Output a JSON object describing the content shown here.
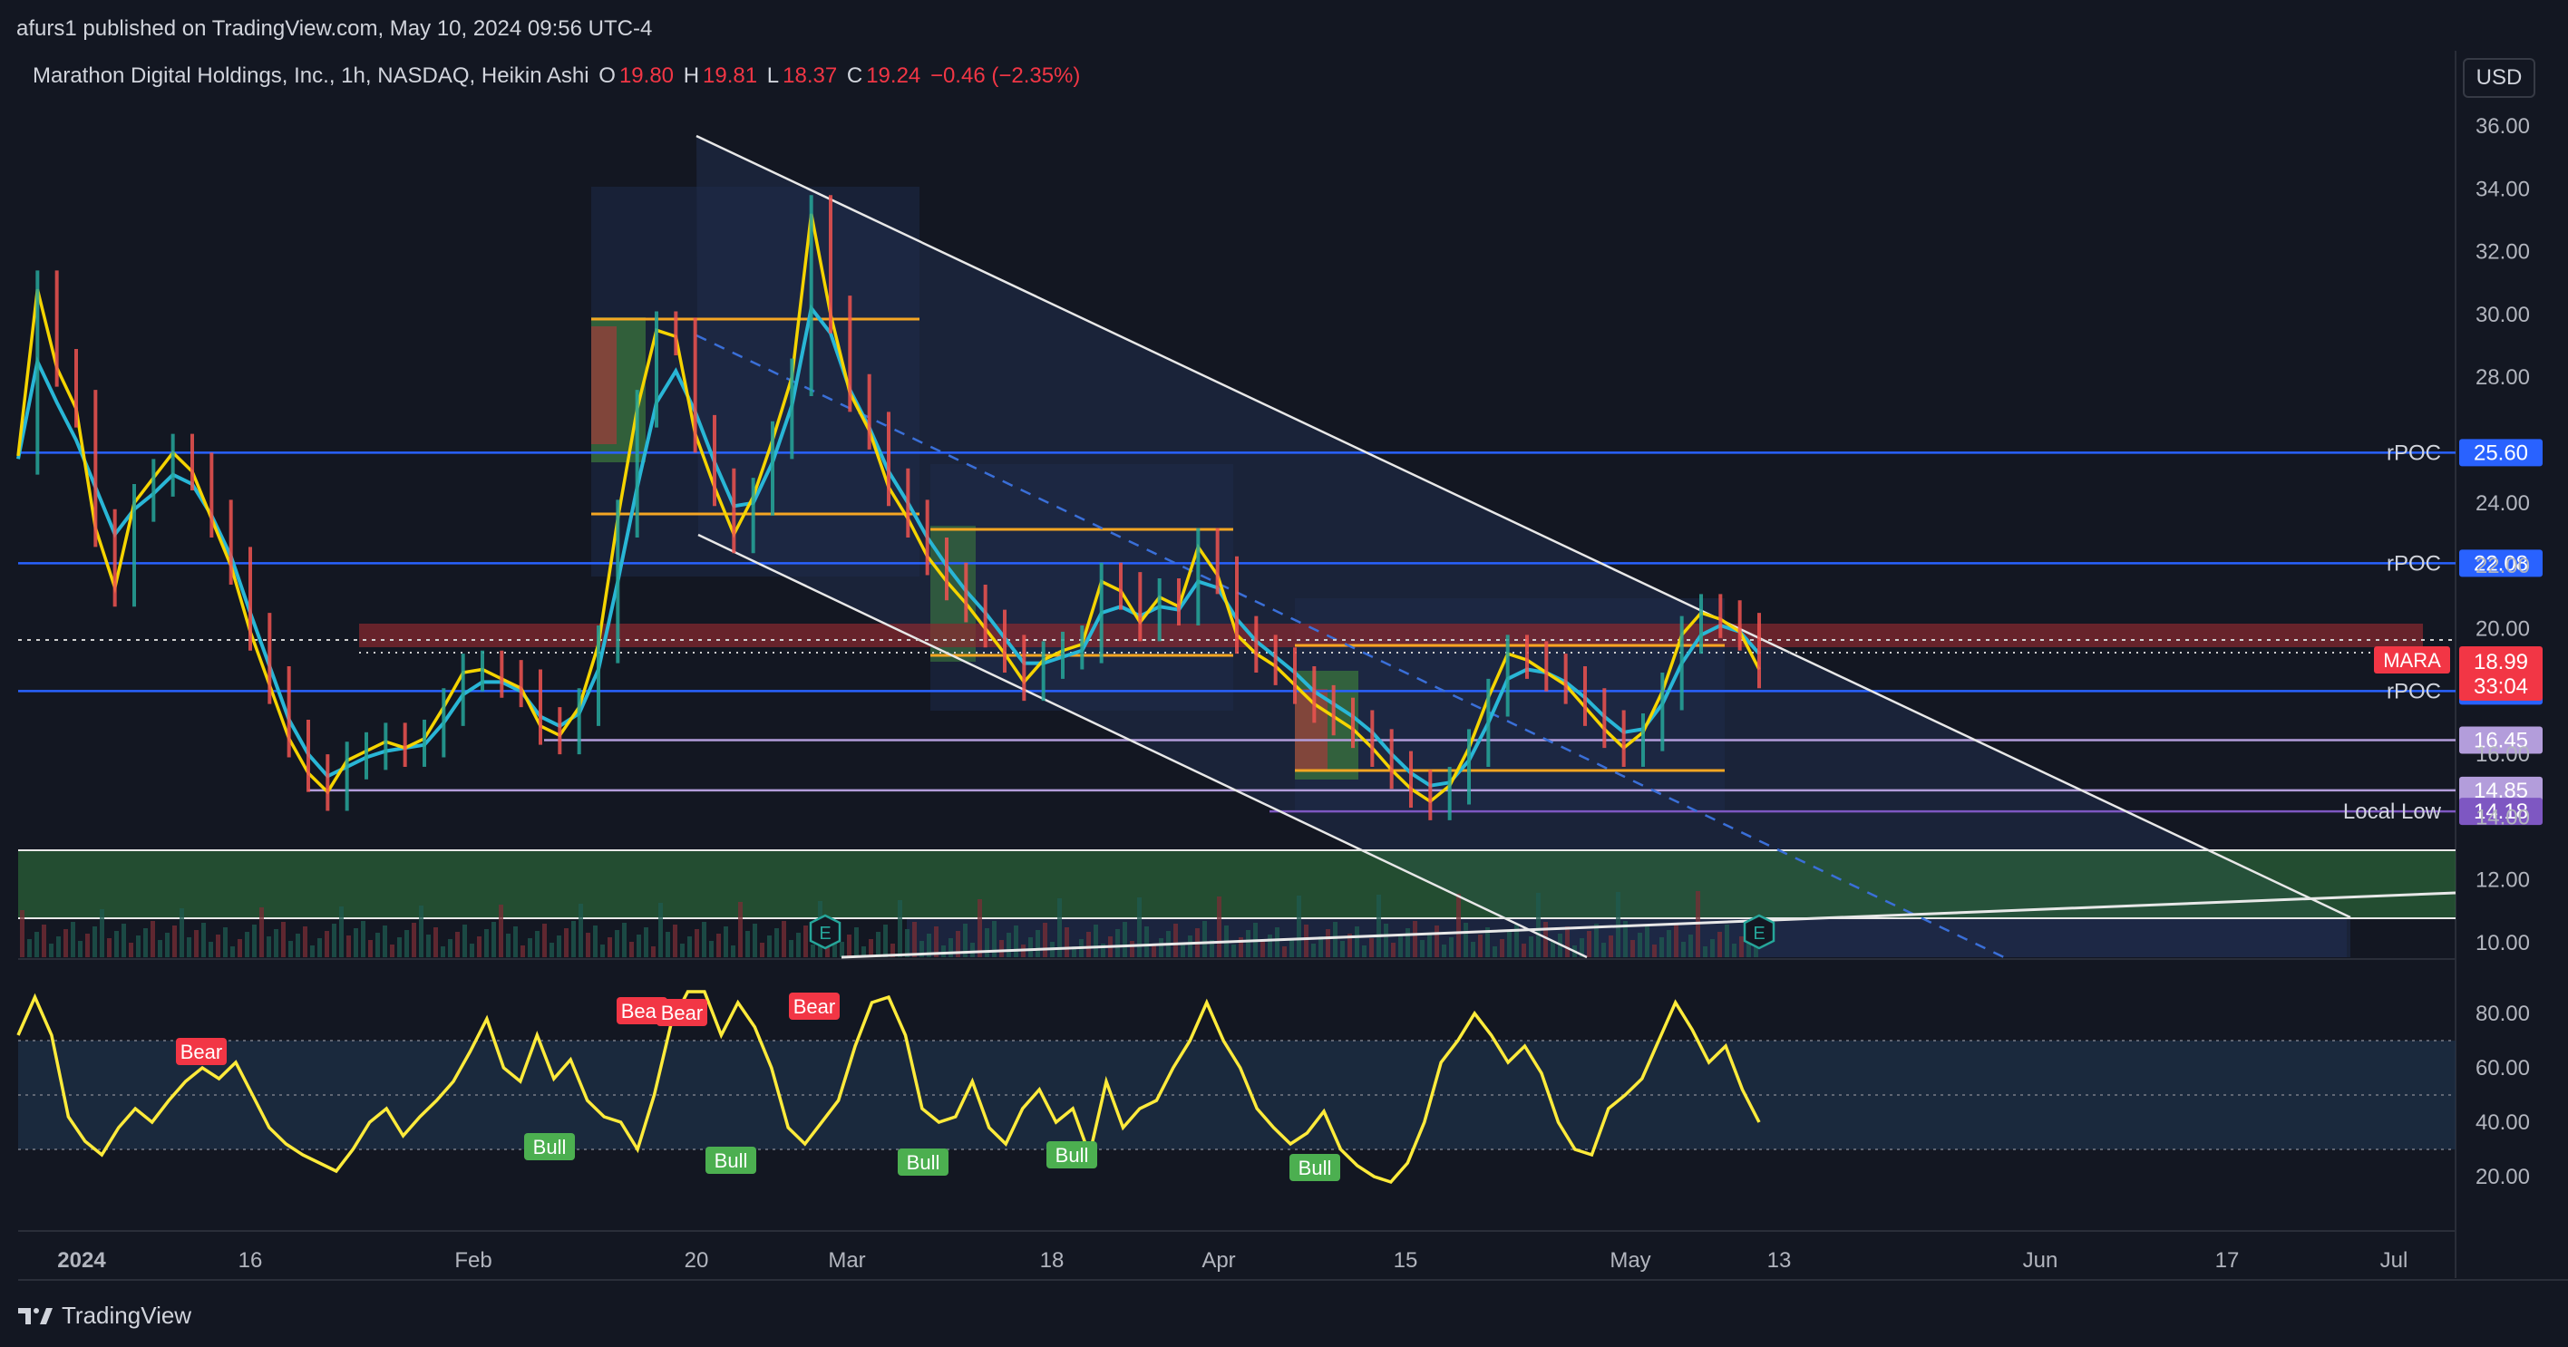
{
  "header": {
    "published": "afurs1 published on TradingView.com, May 10, 2024 09:56 UTC-4"
  },
  "legend": {
    "symbol": "Marathon Digital Holdings, Inc., 1h, NASDAQ, Heikin Ashi",
    "o_label": "O",
    "o_value": "19.80",
    "h_label": "H",
    "h_value": "19.81",
    "l_label": "L",
    "l_value": "18.37",
    "c_label": "C",
    "c_value": "19.24",
    "change": "−0.46 (−2.35%)"
  },
  "currency": "USD",
  "footer": {
    "brand": "TradingView"
  },
  "colors": {
    "background": "#131722",
    "up": "#26a69a",
    "down": "#ef5350",
    "ma_fast": "#f5d400",
    "ma_slow": "#29b6d6",
    "rsi": "#ffeb3b",
    "rpoc": "#2962ff",
    "purple": "#b39ddb",
    "orange": "#f5a623"
  },
  "chart_data": [
    {
      "type": "line",
      "title": "Marathon Digital Holdings, Inc., 1h, NASDAQ, Heikin Ashi",
      "y_ticks": [
        "36.00",
        "34.00",
        "32.00",
        "30.00",
        "28.00",
        "26.00",
        "24.00",
        "22.00",
        "20.00",
        "18.00",
        "16.00",
        "14.00",
        "12.00",
        "10.00"
      ],
      "x_ticks": [
        "2024",
        "16",
        "Feb",
        "20",
        "Mar",
        "18",
        "Apr",
        "15",
        "May",
        "13",
        "Jun",
        "17",
        "Jul"
      ],
      "ylim": [
        10,
        36.5
      ],
      "series": [
        {
          "values": [
            25.5,
            30.8,
            28.3,
            27,
            23.2,
            21.3,
            24,
            24.8,
            25.6,
            25,
            23.5,
            22,
            19.9,
            18.2,
            16.5,
            15.4,
            14.8,
            15.8,
            16.1,
            16.4,
            16.2,
            16.5,
            17.5,
            18.6,
            18.7,
            18.4,
            18.1,
            16.9,
            16.6,
            17.5,
            19.5,
            23.5,
            27,
            29.5,
            29.3,
            26.2,
            24.5,
            23,
            24.2,
            26,
            28,
            33.2,
            30,
            27.5,
            26.3,
            24.5,
            23.5,
            22.3,
            21.5,
            20.8,
            20,
            19.2,
            18.3,
            19,
            19.3,
            19.5,
            21.5,
            21.2,
            20.2,
            21,
            20.7,
            22.6,
            21.7,
            19.8,
            19.2,
            18.8,
            18.2,
            17.6,
            17.2,
            16.8,
            16.2,
            15.5,
            14.9,
            14.5,
            15,
            16.2,
            17.8,
            19.2,
            19,
            18.6,
            18.2,
            17.5,
            16.8,
            16.2,
            16.7,
            18,
            19.8,
            20.5,
            20.3,
            19.9,
            18.7
          ]
        },
        {
          "values": [
            25.4,
            28.5,
            27.2,
            26,
            24.5,
            23,
            23.8,
            24.3,
            24.9,
            24.6,
            23.6,
            22.3,
            20.5,
            18.8,
            17.1,
            16,
            15.3,
            15.6,
            15.9,
            16.1,
            16.2,
            16.3,
            17,
            17.9,
            18.3,
            18.3,
            18,
            17.2,
            16.9,
            17.3,
            18.7,
            21.5,
            24.5,
            27.2,
            28.2,
            26.9,
            25.3,
            23.9,
            24,
            25.3,
            27.1,
            30.2,
            29.4,
            27.6,
            26.4,
            25,
            24,
            22.9,
            22,
            21.2,
            20.5,
            19.7,
            18.9,
            18.9,
            19.1,
            19.3,
            20.5,
            20.7,
            20.4,
            20.7,
            20.6,
            21.5,
            21.3,
            20.3,
            19.6,
            19.1,
            18.6,
            18,
            17.6,
            17.2,
            16.7,
            16,
            15.4,
            15,
            15.1,
            15.8,
            17,
            18.4,
            18.7,
            18.6,
            18.3,
            17.8,
            17.2,
            16.7,
            16.8,
            17.6,
            18.9,
            19.8,
            20.1,
            19.9,
            19.2
          ]
        }
      ],
      "horizontal_levels": [
        {
          "label": "rPOC",
          "price": "25.60"
        },
        {
          "label": "rPOC",
          "price": "22.08"
        },
        {
          "label": "rPOC",
          "price": "18.01"
        },
        {
          "label": "",
          "price": "16.45"
        },
        {
          "label": "",
          "price": "14.85"
        },
        {
          "label": "Local Low",
          "price": "14.18"
        }
      ],
      "current_price": {
        "symbol": "MARA",
        "price": "18.99",
        "countdown": "33:04"
      },
      "earnings_markers": [
        "E",
        "E"
      ]
    },
    {
      "type": "line",
      "y_ticks": [
        "80.00",
        "60.00",
        "40.00",
        "20.00"
      ],
      "ylim": [
        0,
        100
      ],
      "bands": [
        30,
        50,
        70
      ],
      "series": [
        {
          "values": [
            72,
            86,
            72,
            42,
            33,
            28,
            38,
            45,
            40,
            48,
            55,
            60,
            56,
            62,
            50,
            38,
            32,
            28,
            25,
            22,
            30,
            40,
            45,
            35,
            42,
            48,
            55,
            66,
            78,
            60,
            55,
            72,
            56,
            63,
            48,
            42,
            40,
            30,
            50,
            76,
            88,
            88,
            72,
            84,
            75,
            60,
            38,
            32,
            40,
            48,
            68,
            84,
            86,
            72,
            45,
            40,
            42,
            55,
            38,
            32,
            45,
            52,
            40,
            45,
            28,
            55,
            38,
            45,
            48,
            60,
            70,
            84,
            70,
            60,
            45,
            38,
            32,
            36,
            44,
            30,
            24,
            20,
            18,
            25,
            40,
            62,
            70,
            80,
            72,
            62,
            68,
            58,
            40,
            30,
            28,
            45,
            50,
            56,
            70,
            84,
            74,
            62,
            68,
            52,
            40
          ]
        }
      ],
      "signals": [
        {
          "label": "Bear"
        },
        {
          "label": "Bear"
        },
        {
          "label": "Bear"
        },
        {
          "label": "Bear"
        },
        {
          "label": "Bull"
        },
        {
          "label": "Bull"
        },
        {
          "label": "Bull"
        },
        {
          "label": "Bull"
        },
        {
          "label": "Bull"
        }
      ]
    }
  ]
}
